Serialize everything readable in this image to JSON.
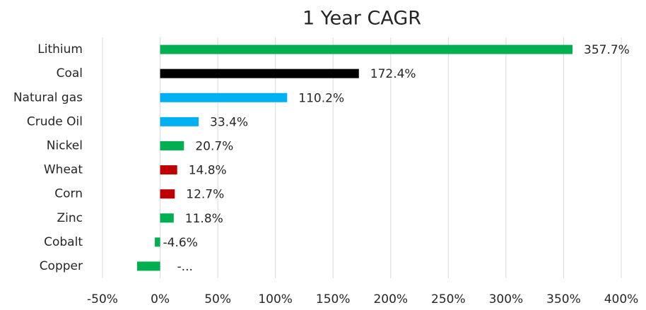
{
  "chart_data": {
    "type": "bar",
    "orientation": "horizontal",
    "title": "1 Year CAGR",
    "categories": [
      "Lithium",
      "Coal",
      "Natural gas",
      "Crude Oil",
      "Nickel",
      "Wheat",
      "Corn",
      "Zinc",
      "Cobalt",
      "Copper"
    ],
    "values": [
      357.7,
      172.4,
      110.2,
      33.4,
      20.7,
      14.8,
      12.7,
      11.8,
      -4.6,
      -20
    ],
    "value_labels": [
      "357.7%",
      "172.4%",
      "110.2%",
      "33.4%",
      "20.7%",
      "14.8%",
      "12.7%",
      "11.8%",
      "-4.6%",
      "-..."
    ],
    "colors": [
      "#00b050",
      "#000000",
      "#00b0f0",
      "#00b0f0",
      "#00b050",
      "#c00000",
      "#c00000",
      "#00b050",
      "#00b050",
      "#00b050"
    ],
    "xlim": [
      -50,
      400
    ],
    "xticks": [
      {
        "value": -50,
        "label": "-50%"
      },
      {
        "value": 0,
        "label": "0%"
      },
      {
        "value": 50,
        "label": "50%"
      },
      {
        "value": 100,
        "label": "100%"
      },
      {
        "value": 150,
        "label": "150%"
      },
      {
        "value": 200,
        "label": "200%"
      },
      {
        "value": 250,
        "label": "250%"
      },
      {
        "value": 300,
        "label": "300%"
      },
      {
        "value": 350,
        "label": "350%"
      },
      {
        "value": 400,
        "label": "400%"
      }
    ],
    "grid": true
  }
}
